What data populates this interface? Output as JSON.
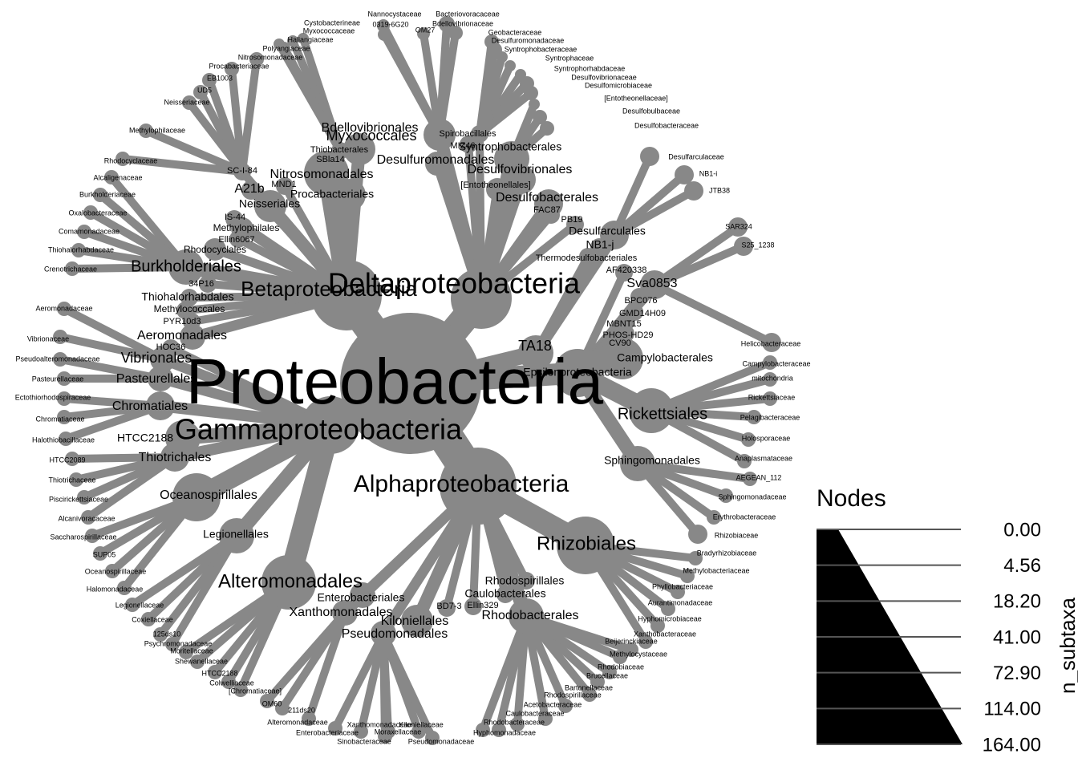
{
  "tree": {
    "root": "Proteobacteria",
    "classes": [
      "Deltaproteobacteria",
      "Betaproteobacteria",
      "Gammaproteobacteria",
      "Alphaproteobacteria",
      "Epsilonproteobacteria",
      "TA18"
    ],
    "orders": [
      "Bdellovibrionales",
      "Myxococcales",
      "Desulfuromonadales",
      "Syntrophobacterales",
      "Desulfovibrionales",
      "[Entotheonellales]",
      "Desulfobacterales",
      "FAC87",
      "PB19",
      "Desulfarculales",
      "NB1-j",
      "Thermodesulfobacteriales",
      "AF420338",
      "Sva0853",
      "BPC076",
      "GMD14H09",
      "MBNT15",
      "PHOS-HD29",
      "CV90",
      "MIZ46",
      "Spirobacillales",
      "Nitrosomonadales",
      "Procabacteriales",
      "Neisseriales",
      "Methylophilales",
      "Rhodocyclales",
      "Burkholderiales",
      "A21b",
      "MND1",
      "SC-I-84",
      "IS-44",
      "Ellin6067",
      "SBla14",
      "Thiobacterales",
      "34P16",
      "Thiohalorhabdales",
      "Methylococcales",
      "PYR10d3",
      "Aeromonadales",
      "HOC36",
      "Vibrionales",
      "Pasteurellales",
      "Chromatiales",
      "HTCC2188",
      "Thiotrichales",
      "Oceanospirillales",
      "Legionellales",
      "Alteromonadales",
      "Enterobacteriales",
      "Xanthomonadales",
      "Pseudomonadales",
      "Kiloniellales",
      "BD7-3",
      "Ellin329",
      "Rhodospirillales",
      "Caulobacterales",
      "Rhodobacterales",
      "Rhizobiales",
      "Sphingomonadales",
      "Rickettsiales",
      "Campylobacterales"
    ],
    "families": [
      "Cystobacterineae",
      "Nannocystaceae",
      "Bacteriovoracaceae",
      "0319-6G20",
      "Bdellovibrionaceae",
      "OM27",
      "Myxococcaceae",
      "Haliangiaceae",
      "Polyangiaceae",
      "Geobacteraceae",
      "Desulfuromonadaceae",
      "Syntrophobacteraceae",
      "Syntrophaceae",
      "Syntrophorhabdaceae",
      "Desulfovibrionaceae",
      "Desulfomicrobiaceae",
      "[Entotheonellaceae]",
      "Desulfobulbaceae",
      "Desulfobacteraceae",
      "Desulfarculaceae",
      "NB1-i",
      "JTB38",
      "SAR324",
      "S25_1238",
      "Nitrosomonadaceae",
      "Procabacteriaceae",
      "EB1003",
      "UD5",
      "Neisseriaceae",
      "Methylophilaceae",
      "Rhodocyclaceae",
      "Alcaligenaceae",
      "Burkholderiaceae",
      "Oxalobacteraceae",
      "Comamonadaceae",
      "Thiohalorhabdaceae",
      "Crenotrichaceae",
      "Aeromonadaceae",
      "Vibrionaceae",
      "Pseudoalteromonadaceae",
      "Pasteurellaceae",
      "Ectothiorhodospiraceae",
      "Chromatiaceae",
      "Halothiobacillaceae",
      "HTCC2089",
      "Thiotrichaceae",
      "Piscirickettsiaceae",
      "Alcanivoracaceae",
      "Saccharospirillaceae",
      "SUP05",
      "Oceanospirillaceae",
      "Halomonadaceae",
      "Legionellaceae",
      "Coxiellaceae",
      "125ds10",
      "Psychromonadaceae",
      "Moritellaceae",
      "Shewanellaceae",
      "HTCC2188",
      "Colwelliaceae",
      "[Chromatiaceae]",
      "OM60",
      "211ds20",
      "Alteromonadaceae",
      "Enterobacteriaceae",
      "Xanthomonadaceae",
      "Moraxellaceae",
      "Sinobacteraceae",
      "Kiloniellaceae",
      "Pseudomonadaceae",
      "Rhodobacteraceae",
      "Hyphomonadaceae",
      "Caulobacteraceae",
      "Acetobacteraceae",
      "Rhodospirillaceae",
      "Bartonellaceae",
      "Brucellaceae",
      "Rhodobiaceae",
      "Methylocystaceae",
      "Beijerinckiaceae",
      "Xanthobacteraceae",
      "Hyphomicrobiaceae",
      "Aurantimonadaceae",
      "Phyllobacteriaceae",
      "Methylobacteriaceae",
      "Bradyrhizobiaceae",
      "Rhizobiaceae",
      "Erythrobacteraceae",
      "Sphingomonadaceae",
      "AEGEAN_112",
      "Anaplasmataceae",
      "Holosporaceae",
      "Pelagibacteraceae",
      "Rickettsiaceae",
      "mitochondria",
      "Campylobacteraceae",
      "Helicobacteraceae"
    ]
  },
  "legend": {
    "title": "Nodes",
    "axis_title": "n_subtaxa",
    "ticks": [
      "0.00",
      "4.56",
      "18.20",
      "41.00",
      "72.90",
      "114.00",
      "164.00"
    ],
    "tick_values": [
      0,
      4.56,
      18.2,
      41,
      72.9,
      114,
      164
    ],
    "max_value": 164
  },
  "colors": {
    "node": "#888888",
    "legend_fill": "#000000",
    "text": "#000000",
    "background": "#ffffff"
  }
}
